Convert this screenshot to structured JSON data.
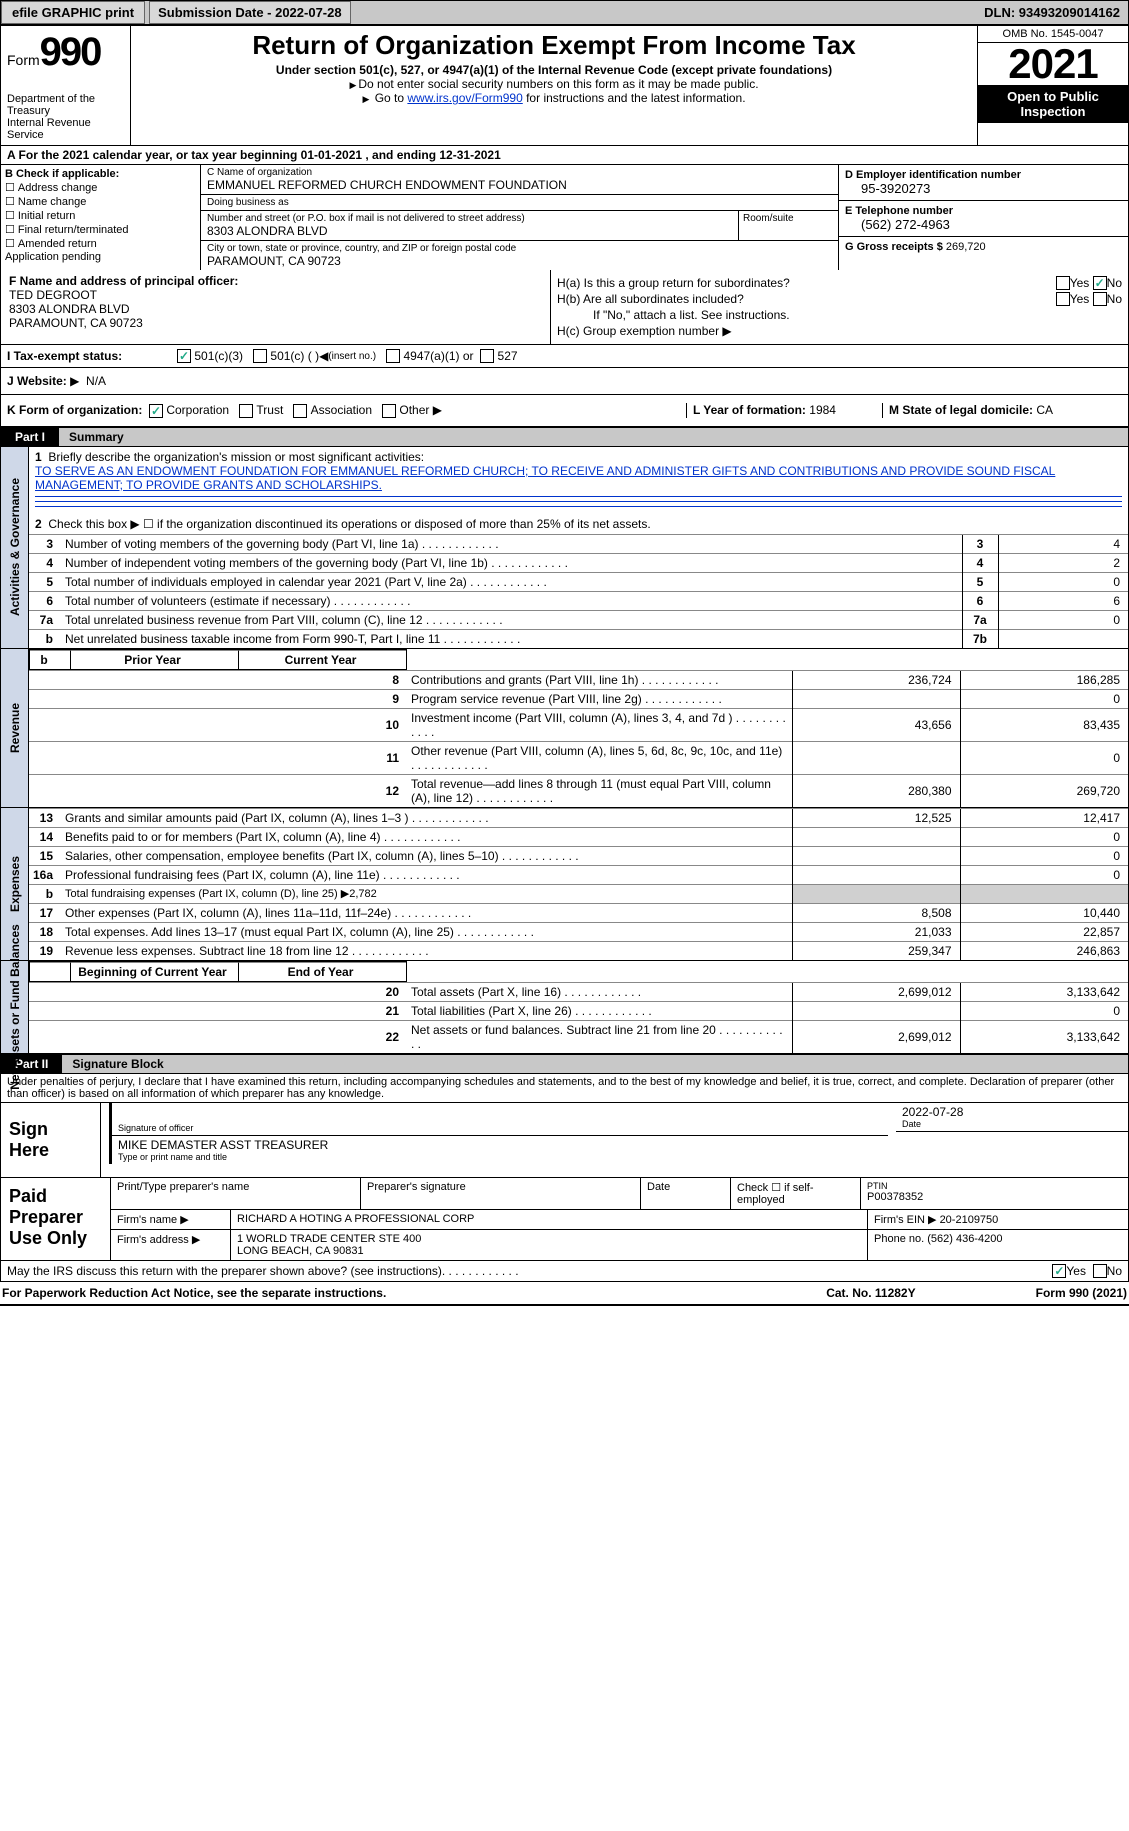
{
  "topbar": {
    "efile_btn": "efile GRAPHIC print",
    "submission_label": "Submission Date - 2022-07-28",
    "dln": "DLN: 93493209014162"
  },
  "header": {
    "form_word": "Form",
    "form_number": "990",
    "dept": "Department of the Treasury",
    "irs": "Internal Revenue Service",
    "title": "Return of Organization Exempt From Income Tax",
    "subtitle1": "Under section 501(c), 527, or 4947(a)(1) of the Internal Revenue Code (except private foundations)",
    "subtitle2": "Do not enter social security numbers on this form as it may be made public.",
    "subtitle3_pre": "Go to ",
    "subtitle3_link": "www.irs.gov/Form990",
    "subtitle3_post": " for instructions and the latest information.",
    "omb": "OMB No. 1545-0047",
    "year": "2021",
    "open_public": "Open to Public Inspection"
  },
  "row_a": "A   For the 2021 calendar year, or tax year beginning 01-01-2021     , and ending 12-31-2021",
  "col_b": {
    "title": "B Check if applicable:",
    "addr_change": "Address change",
    "name_change": "Name change",
    "initial": "Initial return",
    "final": "Final return/terminated",
    "amended": "Amended return",
    "app_pending": "Application pending"
  },
  "col_c": {
    "name_label": "C Name of organization",
    "name": "EMMANUEL REFORMED CHURCH ENDOWMENT FOUNDATION",
    "dba_label": "Doing business as",
    "dba": "",
    "street_label": "Number and street (or P.O. box if mail is not delivered to street address)",
    "street": "8303 ALONDRA BLVD",
    "roomsuite_label": "Room/suite",
    "city_label": "City or town, state or province, country, and ZIP or foreign postal code",
    "city": "PARAMOUNT, CA  90723"
  },
  "col_d": {
    "ein_label": "D Employer identification number",
    "ein": "95-3920273",
    "phone_label": "E Telephone number",
    "phone": "(562) 272-4963",
    "gross_label": "G Gross receipts $",
    "gross": "269,720"
  },
  "col_f": {
    "label": "F Name and address of principal officer:",
    "name": "TED DEGROOT",
    "street": "8303 ALONDRA BLVD",
    "city": "PARAMOUNT, CA  90723"
  },
  "col_h": {
    "ha_label": "H(a)  Is this a group return for subordinates?",
    "hb_label": "H(b)  Are all subordinates included?",
    "hb_note": "If \"No,\" attach a list. See instructions.",
    "hc_label": "H(c)  Group exemption number",
    "yes": "Yes",
    "no": "No"
  },
  "row_i": {
    "label": "I     Tax-exempt status:",
    "opt1": "501(c)(3)",
    "opt2": "501(c) (   ) ",
    "opt2_note": "(insert no.)",
    "opt3": "4947(a)(1) or",
    "opt4": "527"
  },
  "row_j": {
    "label": "J    Website:",
    "val": "N/A"
  },
  "row_k": {
    "label": "K Form of organization:",
    "corp": "Corporation",
    "trust": "Trust",
    "assoc": "Association",
    "other": "Other",
    "l_label": "L Year of formation:",
    "l_val": "1984",
    "m_label": "M State of legal domicile:",
    "m_val": "CA"
  },
  "part1": {
    "num": "Part I",
    "title": "Summary"
  },
  "summary": {
    "line1_label": "Briefly describe the organization's mission or most significant activities:",
    "mission": "TO SERVE AS AN ENDOWMENT FOUNDATION FOR EMMANUEL REFORMED CHURCH; TO RECEIVE AND ADMINISTER GIFTS AND CONTRIBUTIONS AND PROVIDE SOUND FISCAL MANAGEMENT; TO PROVIDE GRANTS AND SCHOLARSHIPS.",
    "line2": "Check this box ▶ ☐  if the organization discontinued its operations or disposed of more than 25% of its net assets.",
    "lines_ag": [
      {
        "num": "3",
        "desc": "Number of voting members of the governing body (Part VI, line 1a)",
        "box": "3",
        "val": "4"
      },
      {
        "num": "4",
        "desc": "Number of independent voting members of the governing body (Part VI, line 1b)",
        "box": "4",
        "val": "2"
      },
      {
        "num": "5",
        "desc": "Total number of individuals employed in calendar year 2021 (Part V, line 2a)",
        "box": "5",
        "val": "0"
      },
      {
        "num": "6",
        "desc": "Total number of volunteers (estimate if necessary)",
        "box": "6",
        "val": "6"
      },
      {
        "num": "7a",
        "desc": "Total unrelated business revenue from Part VIII, column (C), line 12",
        "box": "7a",
        "val": "0"
      },
      {
        "num": "b",
        "desc": "Net unrelated business taxable income from Form 990-T, Part I, line 11",
        "box": "7b",
        "val": ""
      }
    ],
    "side_ag": "Activities & Governance",
    "side_rev": "Revenue",
    "side_exp": "Expenses",
    "side_net": "Net Assets or Fund Balances",
    "prior_hdr": "Prior Year",
    "current_hdr": "Current Year",
    "beg_hdr": "Beginning of Current Year",
    "end_hdr": "End of Year",
    "revenue": [
      {
        "num": "8",
        "desc": "Contributions and grants (Part VIII, line 1h)",
        "prior": "236,724",
        "current": "186,285"
      },
      {
        "num": "9",
        "desc": "Program service revenue (Part VIII, line 2g)",
        "prior": "",
        "current": "0"
      },
      {
        "num": "10",
        "desc": "Investment income (Part VIII, column (A), lines 3, 4, and 7d )",
        "prior": "43,656",
        "current": "83,435"
      },
      {
        "num": "11",
        "desc": "Other revenue (Part VIII, column (A), lines 5, 6d, 8c, 9c, 10c, and 11e)",
        "prior": "",
        "current": "0"
      },
      {
        "num": "12",
        "desc": "Total revenue—add lines 8 through 11 (must equal Part VIII, column (A), line 12)",
        "prior": "280,380",
        "current": "269,720"
      }
    ],
    "expenses": [
      {
        "num": "13",
        "desc": "Grants and similar amounts paid (Part IX, column (A), lines 1–3 )",
        "prior": "12,525",
        "current": "12,417"
      },
      {
        "num": "14",
        "desc": "Benefits paid to or for members (Part IX, column (A), line 4)",
        "prior": "",
        "current": "0"
      },
      {
        "num": "15",
        "desc": "Salaries, other compensation, employee benefits (Part IX, column (A), lines 5–10)",
        "prior": "",
        "current": "0"
      },
      {
        "num": "16a",
        "desc": "Professional fundraising fees (Part IX, column (A), line 11e)",
        "prior": "",
        "current": "0"
      }
    ],
    "line_b": "Total fundraising expenses (Part IX, column (D), line 25) ▶2,782",
    "expenses2": [
      {
        "num": "17",
        "desc": "Other expenses (Part IX, column (A), lines 11a–11d, 11f–24e)",
        "prior": "8,508",
        "current": "10,440"
      },
      {
        "num": "18",
        "desc": "Total expenses. Add lines 13–17 (must equal Part IX, column (A), line 25)",
        "prior": "21,033",
        "current": "22,857"
      },
      {
        "num": "19",
        "desc": "Revenue less expenses. Subtract line 18 from line 12",
        "prior": "259,347",
        "current": "246,863"
      }
    ],
    "netassets": [
      {
        "num": "20",
        "desc": "Total assets (Part X, line 16)",
        "prior": "2,699,012",
        "current": "3,133,642"
      },
      {
        "num": "21",
        "desc": "Total liabilities (Part X, line 26)",
        "prior": "",
        "current": "0"
      },
      {
        "num": "22",
        "desc": "Net assets or fund balances. Subtract line 21 from line 20",
        "prior": "2,699,012",
        "current": "3,133,642"
      }
    ]
  },
  "part2": {
    "num": "Part II",
    "title": "Signature Block"
  },
  "sig": {
    "declare": "Under penalties of perjury, I declare that I have examined this return, including accompanying schedules and statements, and to the best of my knowledge and belief, it is true, correct, and complete. Declaration of preparer (other than officer) is based on all information of which preparer has any knowledge.",
    "sign_here": "Sign Here",
    "sig_officer_label": "Signature of officer",
    "date_label": "Date",
    "date_val": "2022-07-28",
    "name_title": "MIKE DEMASTER  ASST TREASURER",
    "name_title_label": "Type or print name and title"
  },
  "paid": {
    "title": "Paid Preparer Use Only",
    "print_name_label": "Print/Type preparer's name",
    "prep_sig_label": "Preparer's signature",
    "date_label": "Date",
    "check_self": "Check ☐ if self-employed",
    "ptin_label": "PTIN",
    "ptin": "P00378352",
    "firm_name_label": "Firm's name    ▶",
    "firm_name": "RICHARD A HOTING A PROFESSIONAL CORP",
    "firm_ein_label": "Firm's EIN ▶",
    "firm_ein": "20-2109750",
    "firm_addr_label": "Firm's address ▶",
    "firm_addr1": "1 WORLD TRADE CENTER STE 400",
    "firm_addr2": "LONG BEACH, CA  90831",
    "phone_label": "Phone no.",
    "phone": "(562) 436-4200"
  },
  "footer": {
    "discuss": "May the IRS discuss this return with the preparer shown above? (see instructions)",
    "yes": "Yes",
    "no": "No",
    "paperwork": "For Paperwork Reduction Act Notice, see the separate instructions.",
    "catno": "Cat. No. 11282Y",
    "formref": "Form 990 (2021)"
  }
}
